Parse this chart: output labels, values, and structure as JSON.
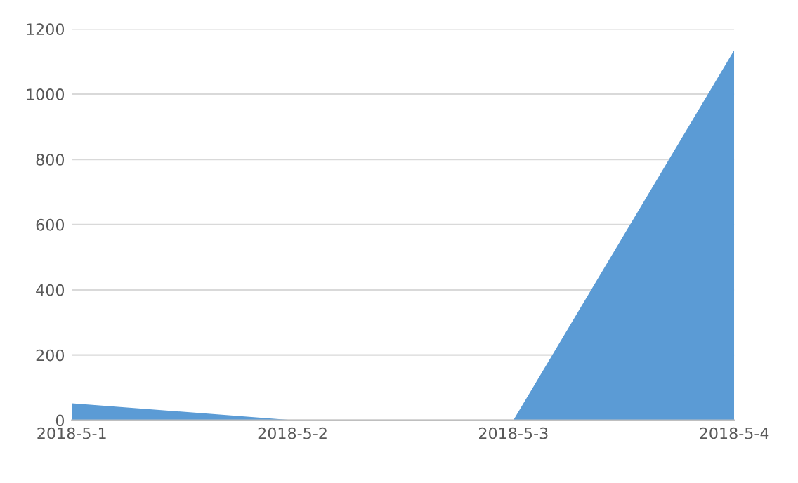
{
  "chart_data": {
    "type": "area",
    "categories": [
      "2018-5-1",
      "2018-5-2",
      "2018-5-3",
      "2018-5-4"
    ],
    "series": [
      {
        "color": "#5b9bd5",
        "values": [
          52,
          0,
          0,
          1135
        ]
      }
    ],
    "ylim": [
      0,
      1200
    ],
    "yticks": [
      0,
      200,
      400,
      600,
      800,
      1000,
      1200
    ],
    "grid": "y",
    "legend": false
  }
}
